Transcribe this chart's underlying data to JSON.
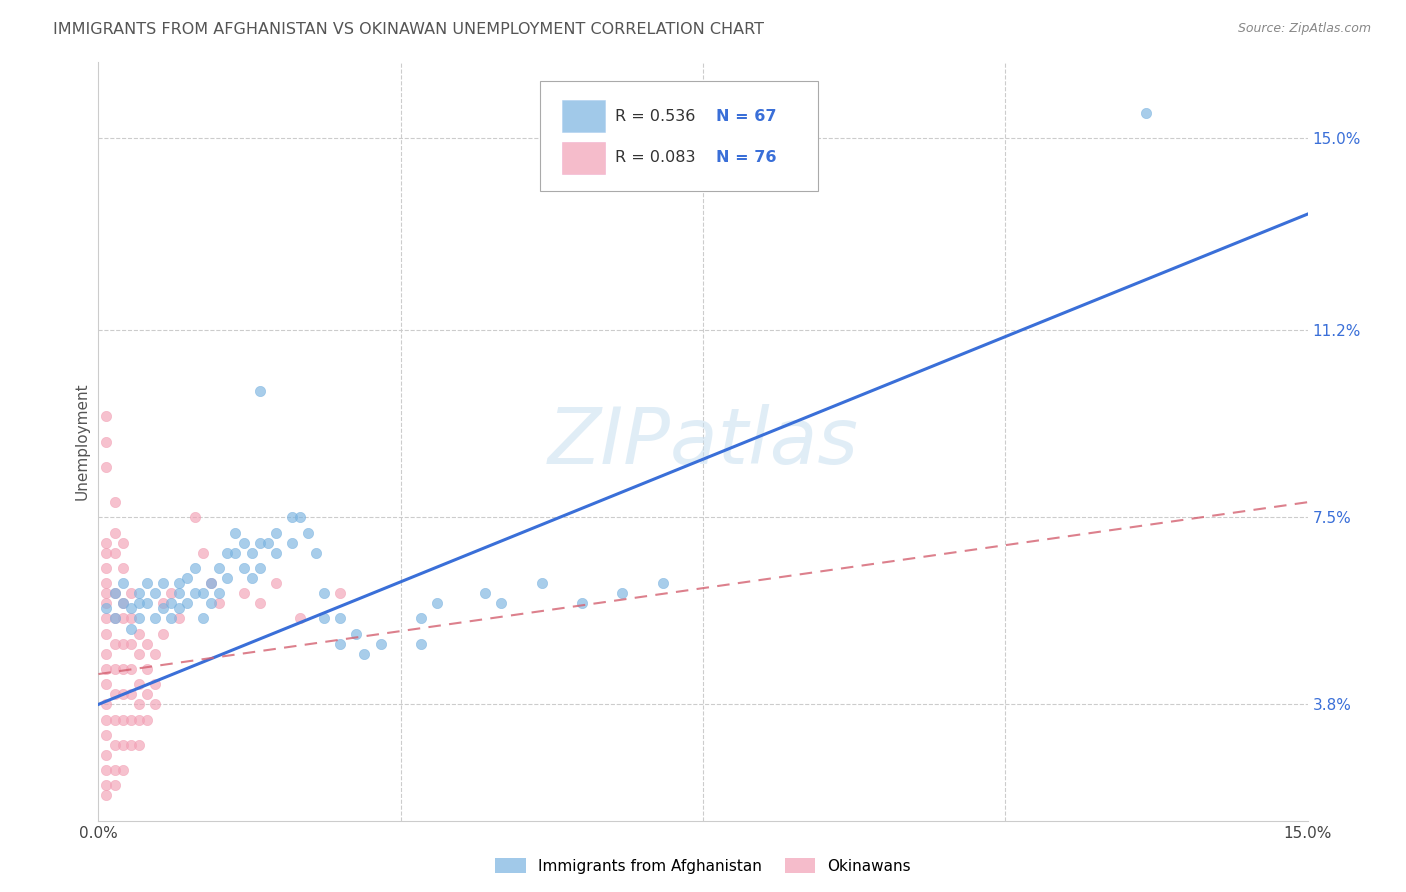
{
  "title": "IMMIGRANTS FROM AFGHANISTAN VS OKINAWAN UNEMPLOYMENT CORRELATION CHART",
  "source": "Source: ZipAtlas.com",
  "ylabel": "Unemployment",
  "watermark": "ZIPatlas",
  "x_min": 0.0,
  "x_max": 0.15,
  "y_min": 0.015,
  "y_max": 0.165,
  "y_ticks": [
    0.038,
    0.075,
    0.112,
    0.15
  ],
  "y_tick_labels": [
    "3.8%",
    "7.5%",
    "11.2%",
    "15.0%"
  ],
  "x_ticks": [
    0.0,
    0.15
  ],
  "x_tick_labels": [
    "0.0%",
    "15.0%"
  ],
  "legend_r1": "R = 0.536",
  "legend_n1": "N = 67",
  "legend_r2": "R = 0.083",
  "legend_n2": "N = 76",
  "blue_color": "#7ab3e0",
  "pink_color": "#f2a0b5",
  "trend_blue_color": "#3a6fd8",
  "trend_pink_color": "#d46070",
  "trend_pink_dash_color": "#d47080",
  "label1": "Immigrants from Afghanistan",
  "label2": "Okinawans",
  "blue_trend_x": [
    0.0,
    0.15
  ],
  "blue_trend_y": [
    0.038,
    0.135
  ],
  "pink_trend_x": [
    0.0,
    0.15
  ],
  "pink_trend_y": [
    0.044,
    0.078
  ],
  "blue_scatter": [
    [
      0.001,
      0.057
    ],
    [
      0.002,
      0.055
    ],
    [
      0.002,
      0.06
    ],
    [
      0.003,
      0.058
    ],
    [
      0.003,
      0.062
    ],
    [
      0.004,
      0.057
    ],
    [
      0.004,
      0.053
    ],
    [
      0.005,
      0.06
    ],
    [
      0.005,
      0.055
    ],
    [
      0.005,
      0.058
    ],
    [
      0.006,
      0.062
    ],
    [
      0.006,
      0.058
    ],
    [
      0.007,
      0.06
    ],
    [
      0.007,
      0.055
    ],
    [
      0.008,
      0.057
    ],
    [
      0.008,
      0.062
    ],
    [
      0.009,
      0.058
    ],
    [
      0.009,
      0.055
    ],
    [
      0.01,
      0.06
    ],
    [
      0.01,
      0.057
    ],
    [
      0.01,
      0.062
    ],
    [
      0.011,
      0.063
    ],
    [
      0.011,
      0.058
    ],
    [
      0.012,
      0.06
    ],
    [
      0.012,
      0.065
    ],
    [
      0.013,
      0.06
    ],
    [
      0.013,
      0.055
    ],
    [
      0.014,
      0.062
    ],
    [
      0.014,
      0.058
    ],
    [
      0.015,
      0.065
    ],
    [
      0.015,
      0.06
    ],
    [
      0.016,
      0.068
    ],
    [
      0.016,
      0.063
    ],
    [
      0.017,
      0.068
    ],
    [
      0.017,
      0.072
    ],
    [
      0.018,
      0.065
    ],
    [
      0.018,
      0.07
    ],
    [
      0.019,
      0.068
    ],
    [
      0.019,
      0.063
    ],
    [
      0.02,
      0.07
    ],
    [
      0.02,
      0.065
    ],
    [
      0.021,
      0.07
    ],
    [
      0.022,
      0.072
    ],
    [
      0.022,
      0.068
    ],
    [
      0.024,
      0.075
    ],
    [
      0.024,
      0.07
    ],
    [
      0.025,
      0.075
    ],
    [
      0.026,
      0.072
    ],
    [
      0.027,
      0.068
    ],
    [
      0.028,
      0.055
    ],
    [
      0.028,
      0.06
    ],
    [
      0.03,
      0.055
    ],
    [
      0.03,
      0.05
    ],
    [
      0.032,
      0.052
    ],
    [
      0.033,
      0.048
    ],
    [
      0.035,
      0.05
    ],
    [
      0.04,
      0.055
    ],
    [
      0.042,
      0.058
    ],
    [
      0.048,
      0.06
    ],
    [
      0.05,
      0.058
    ],
    [
      0.055,
      0.062
    ],
    [
      0.06,
      0.058
    ],
    [
      0.065,
      0.06
    ],
    [
      0.07,
      0.062
    ],
    [
      0.02,
      0.1
    ],
    [
      0.04,
      0.05
    ],
    [
      0.13,
      0.155
    ]
  ],
  "pink_scatter": [
    [
      0.001,
      0.062
    ],
    [
      0.001,
      0.065
    ],
    [
      0.001,
      0.06
    ],
    [
      0.001,
      0.058
    ],
    [
      0.001,
      0.07
    ],
    [
      0.001,
      0.068
    ],
    [
      0.001,
      0.055
    ],
    [
      0.001,
      0.052
    ],
    [
      0.001,
      0.048
    ],
    [
      0.001,
      0.045
    ],
    [
      0.001,
      0.042
    ],
    [
      0.001,
      0.038
    ],
    [
      0.001,
      0.035
    ],
    [
      0.001,
      0.032
    ],
    [
      0.001,
      0.028
    ],
    [
      0.001,
      0.025
    ],
    [
      0.001,
      0.022
    ],
    [
      0.001,
      0.02
    ],
    [
      0.001,
      0.085
    ],
    [
      0.001,
      0.09
    ],
    [
      0.002,
      0.06
    ],
    [
      0.002,
      0.055
    ],
    [
      0.002,
      0.05
    ],
    [
      0.002,
      0.045
    ],
    [
      0.002,
      0.04
    ],
    [
      0.002,
      0.035
    ],
    [
      0.002,
      0.03
    ],
    [
      0.002,
      0.025
    ],
    [
      0.002,
      0.022
    ],
    [
      0.002,
      0.068
    ],
    [
      0.002,
      0.072
    ],
    [
      0.002,
      0.078
    ],
    [
      0.003,
      0.058
    ],
    [
      0.003,
      0.055
    ],
    [
      0.003,
      0.05
    ],
    [
      0.003,
      0.045
    ],
    [
      0.003,
      0.04
    ],
    [
      0.003,
      0.035
    ],
    [
      0.003,
      0.03
    ],
    [
      0.003,
      0.025
    ],
    [
      0.003,
      0.065
    ],
    [
      0.003,
      0.07
    ],
    [
      0.004,
      0.055
    ],
    [
      0.004,
      0.05
    ],
    [
      0.004,
      0.045
    ],
    [
      0.004,
      0.04
    ],
    [
      0.004,
      0.035
    ],
    [
      0.004,
      0.03
    ],
    [
      0.004,
      0.06
    ],
    [
      0.005,
      0.052
    ],
    [
      0.005,
      0.048
    ],
    [
      0.005,
      0.042
    ],
    [
      0.005,
      0.038
    ],
    [
      0.005,
      0.035
    ],
    [
      0.005,
      0.03
    ],
    [
      0.006,
      0.05
    ],
    [
      0.006,
      0.045
    ],
    [
      0.006,
      0.04
    ],
    [
      0.006,
      0.035
    ],
    [
      0.007,
      0.048
    ],
    [
      0.007,
      0.042
    ],
    [
      0.007,
      0.038
    ],
    [
      0.008,
      0.058
    ],
    [
      0.008,
      0.052
    ],
    [
      0.009,
      0.06
    ],
    [
      0.01,
      0.055
    ],
    [
      0.012,
      0.075
    ],
    [
      0.013,
      0.068
    ],
    [
      0.014,
      0.062
    ],
    [
      0.015,
      0.058
    ],
    [
      0.018,
      0.06
    ],
    [
      0.02,
      0.058
    ],
    [
      0.022,
      0.062
    ],
    [
      0.025,
      0.055
    ],
    [
      0.03,
      0.06
    ],
    [
      0.001,
      0.095
    ]
  ]
}
